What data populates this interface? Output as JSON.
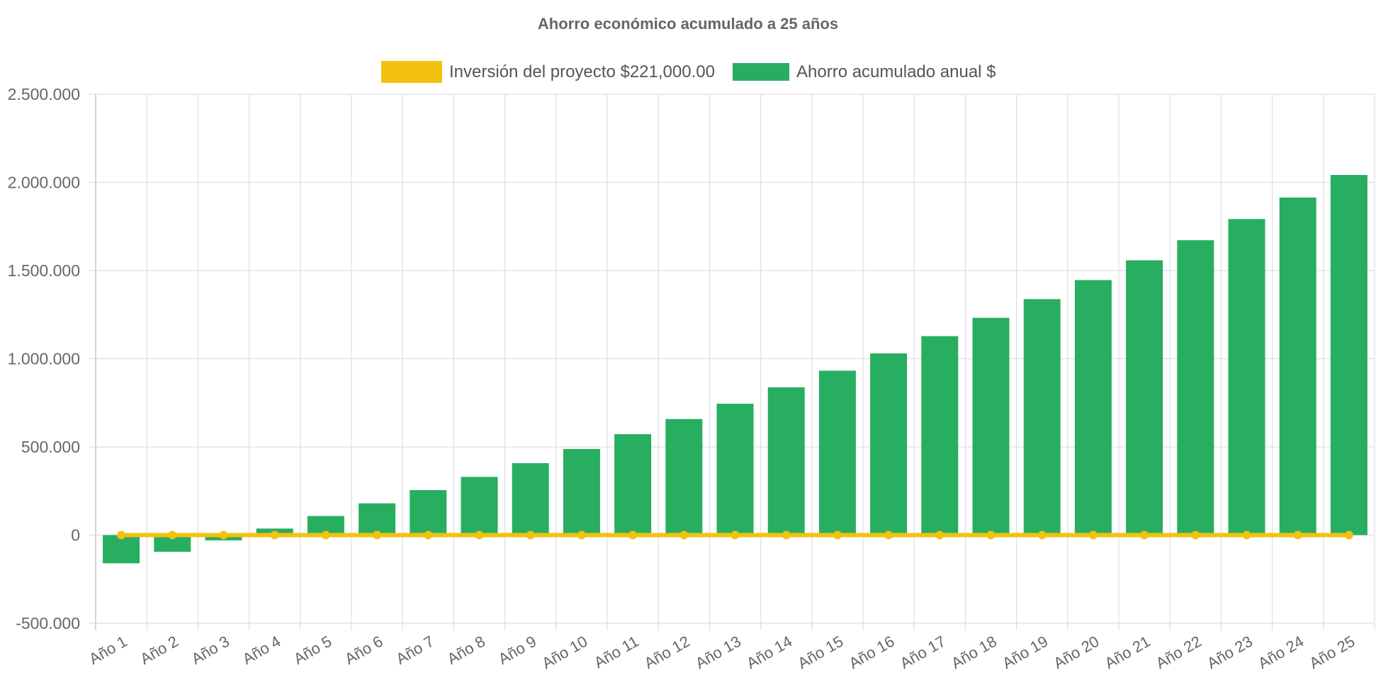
{
  "chart_data": {
    "type": "bar",
    "title": "Ahorro económico acumulado a 25 años",
    "categories": [
      "Año 1",
      "Año 2",
      "Año 3",
      "Año 4",
      "Año 5",
      "Año 6",
      "Año 7",
      "Año 8",
      "Año 9",
      "Año 10",
      "Año 11",
      "Año 12",
      "Año 13",
      "Año 14",
      "Año 15",
      "Año 16",
      "Año 17",
      "Año 18",
      "Año 19",
      "Año 20",
      "Año 21",
      "Año 22",
      "Año 23",
      "Año 24",
      "Año 25"
    ],
    "series": [
      {
        "name": "Inversión del proyecto $221,000.00",
        "kind": "line",
        "color": "#f2c20f",
        "values": [
          0,
          0,
          0,
          0,
          0,
          0,
          0,
          0,
          0,
          0,
          0,
          0,
          0,
          0,
          0,
          0,
          0,
          0,
          0,
          0,
          0,
          0,
          0,
          0,
          0
        ]
      },
      {
        "name": "Ahorro acumulado anual $",
        "kind": "bar",
        "color": "#27ae60",
        "values": [
          -160000,
          -95000,
          -30000,
          37000,
          108000,
          180000,
          255000,
          330000,
          408000,
          488000,
          572000,
          658000,
          745000,
          838000,
          932000,
          1030000,
          1128000,
          1232000,
          1338000,
          1446000,
          1558000,
          1672000,
          1792000,
          1914000,
          2042000
        ]
      }
    ],
    "ylim": [
      -500000,
      2500000
    ],
    "yticks": [
      -500000,
      0,
      500000,
      1000000,
      1500000,
      2000000,
      2500000
    ],
    "ytick_labels": [
      "-500.000",
      "0",
      "500.000",
      "1.000.000",
      "1.500.000",
      "2.000.000",
      "2.500.000"
    ],
    "xlabel": "",
    "ylabel": "",
    "grid": true,
    "legend": "top-center"
  }
}
